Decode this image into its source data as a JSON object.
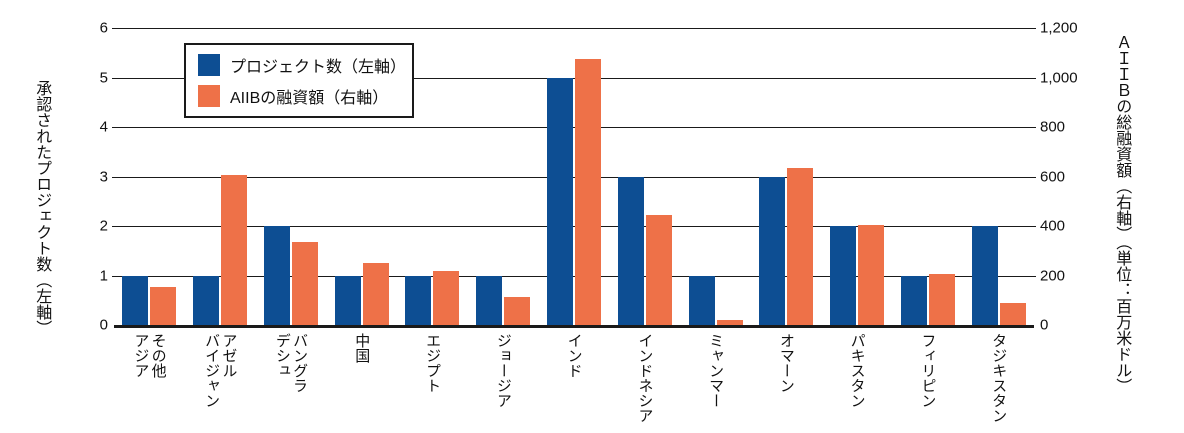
{
  "colors": {
    "bar_blue": "#0d4e93",
    "bar_orange": "#ee7148",
    "axis_line": "#1a1a1a",
    "background": "#ffffff"
  },
  "legend": {
    "items": [
      {
        "label": "プロジェクト数（左軸）",
        "color": "#0d4e93"
      },
      {
        "label": "AIIBの融資額（右軸）",
        "color": "#ee7148"
      }
    ]
  },
  "chart_data": {
    "type": "bar",
    "categories": [
      "その他アジア",
      "アゼルバイジャン",
      "バングラデシュ",
      "中国",
      "エジプト",
      "ジョージア",
      "インド",
      "インドネシア",
      "ミャンマー",
      "オマーン",
      "パキスタン",
      "フィリピン",
      "タジキスタン"
    ],
    "categories_display": [
      "その他\nアジア",
      "アゼル\nバイジャン",
      "バングラ\nデシュ",
      "中国",
      "エジプト",
      "ジョージア",
      "インド",
      "インドネシア",
      "ミャンマー",
      "オマーン",
      "パキスタン",
      "フィリピン",
      "タジキスタン"
    ],
    "series": [
      {
        "name": "プロジェクト数（左軸）",
        "axis": "left",
        "color": "#0d4e93",
        "values": [
          1,
          1,
          2,
          1,
          1,
          1,
          5,
          3,
          1,
          3,
          2,
          1,
          2
        ]
      },
      {
        "name": "AIIBの融資額（右軸）",
        "axis": "right",
        "color": "#ee7148",
        "values": [
          155,
          605,
          335,
          250,
          220,
          115,
          1075,
          445,
          20,
          635,
          405,
          205,
          90
        ]
      }
    ],
    "left_axis": {
      "title": "承認されたプロジェクト数（左軸）",
      "ticks": [
        0,
        1,
        2,
        3,
        4,
        5,
        6
      ],
      "min": 0,
      "max": 6
    },
    "right_axis": {
      "title": "AIIBの総融資額（右軸）（単位：百万米ドル）",
      "ticks": [
        "0",
        "200",
        "400",
        "600",
        "800",
        "1,000",
        "1,200"
      ],
      "min": 0,
      "max": 1200
    },
    "grid": true,
    "legend_position": "inset-top-left"
  }
}
